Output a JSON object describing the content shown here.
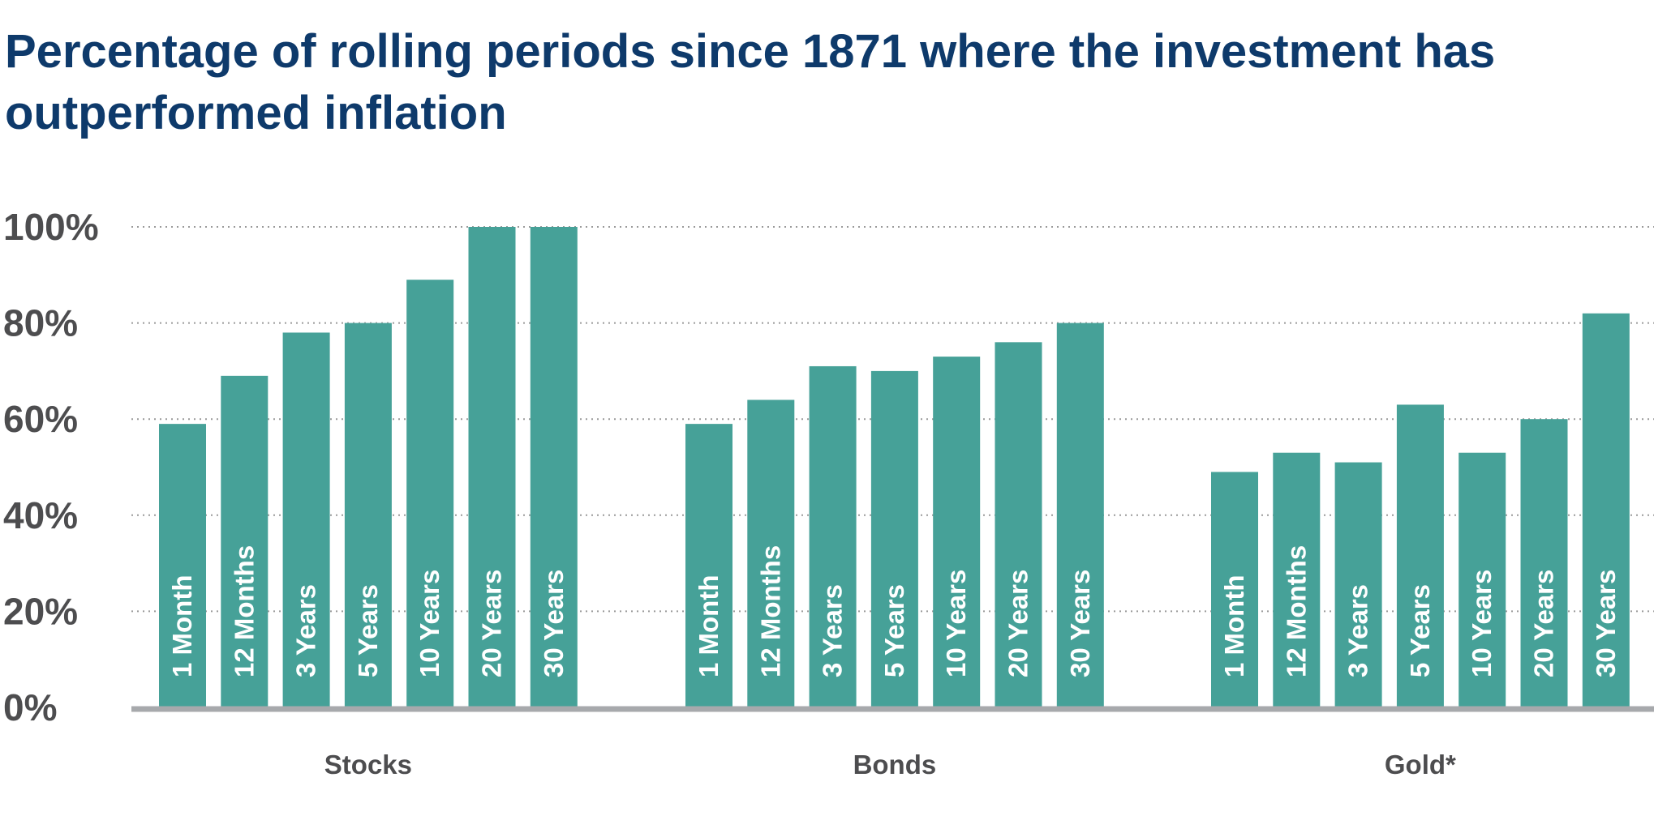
{
  "chart_data": {
    "type": "bar",
    "title": "Percentage of rolling periods since 1871 where the investment has outperformed inflation",
    "xlabel": "",
    "ylabel": "",
    "ylim": [
      0,
      100
    ],
    "yticks": [
      0,
      20,
      40,
      60,
      80,
      100
    ],
    "ytick_labels": [
      "0%",
      "20%",
      "40%",
      "60%",
      "80%",
      "100%"
    ],
    "grid": true,
    "bar_color": "#46a198",
    "groups": [
      {
        "name": "Stocks",
        "categories": [
          "1 Month",
          "12 Months",
          "3 Years",
          "5 Years",
          "10 Years",
          "20 Years",
          "30 Years"
        ],
        "values": [
          59,
          69,
          78,
          80,
          89,
          100,
          100
        ]
      },
      {
        "name": "Bonds",
        "categories": [
          "1 Month",
          "12 Months",
          "3 Years",
          "5 Years",
          "10 Years",
          "20 Years",
          "30 Years"
        ],
        "values": [
          59,
          64,
          71,
          70,
          73,
          76,
          80
        ]
      },
      {
        "name": "Gold*",
        "categories": [
          "1 Month",
          "12 Months",
          "3 Years",
          "5 Years",
          "10 Years",
          "20 Years",
          "30 Years"
        ],
        "values": [
          49,
          53,
          51,
          63,
          53,
          60,
          82
        ]
      }
    ]
  }
}
